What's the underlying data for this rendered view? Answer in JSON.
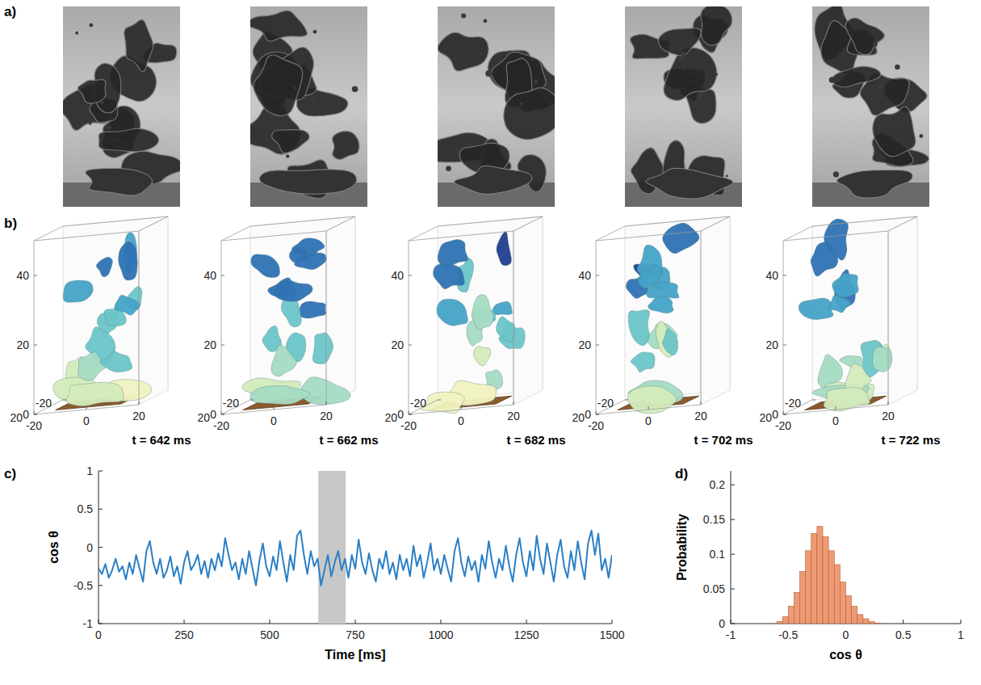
{
  "chart_data": [
    {
      "type": "image",
      "panel_label": "a)"
    },
    {
      "type": "surface3d",
      "panel_label": "b)",
      "titles": [
        "t = 642 ms",
        "t = 662 ms",
        "t = 682 ms",
        "t = 702 ms",
        "t = 722 ms"
      ],
      "xlim": [
        -20,
        20
      ],
      "ylim": [
        -20,
        20
      ],
      "zlim": [
        0,
        50
      ],
      "xticks": [
        -20,
        0,
        20
      ],
      "yticks": [
        -20,
        20
      ],
      "zticks": [
        0,
        20,
        40
      ]
    },
    {
      "type": "line",
      "panel_label": "c)",
      "xlabel": "Time [ms]",
      "ylabel": "cos θ",
      "color": "#2a7fc6",
      "x": [
        0,
        10,
        20,
        30,
        40,
        50,
        60,
        70,
        80,
        90,
        100,
        110,
        120,
        130,
        140,
        150,
        160,
        170,
        180,
        190,
        200,
        210,
        220,
        230,
        240,
        250,
        260,
        270,
        280,
        290,
        300,
        310,
        320,
        330,
        340,
        350,
        360,
        370,
        380,
        390,
        400,
        410,
        420,
        430,
        440,
        450,
        460,
        470,
        480,
        490,
        500,
        510,
        520,
        530,
        540,
        550,
        560,
        570,
        580,
        590,
        600,
        610,
        620,
        630,
        640,
        650,
        660,
        670,
        680,
        690,
        700,
        710,
        720,
        730,
        740,
        750,
        760,
        770,
        780,
        790,
        800,
        810,
        820,
        830,
        840,
        850,
        860,
        870,
        880,
        890,
        900,
        910,
        920,
        930,
        940,
        950,
        960,
        970,
        980,
        990,
        1000,
        1010,
        1020,
        1030,
        1040,
        1050,
        1060,
        1070,
        1080,
        1090,
        1100,
        1110,
        1120,
        1130,
        1140,
        1150,
        1160,
        1170,
        1180,
        1190,
        1200,
        1210,
        1220,
        1230,
        1240,
        1250,
        1260,
        1270,
        1280,
        1290,
        1300,
        1310,
        1320,
        1330,
        1340,
        1350,
        1360,
        1370,
        1380,
        1390,
        1400,
        1410,
        1420,
        1430,
        1440,
        1450,
        1460,
        1470,
        1480,
        1490,
        1500
      ],
      "values": [
        -0.28,
        -0.35,
        -0.22,
        -0.4,
        -0.3,
        -0.15,
        -0.32,
        -0.25,
        -0.42,
        -0.2,
        -0.35,
        -0.1,
        -0.28,
        -0.45,
        -0.05,
        0.08,
        -0.2,
        -0.35,
        -0.15,
        -0.4,
        -0.3,
        -0.12,
        -0.38,
        -0.25,
        -0.48,
        -0.2,
        -0.05,
        -0.3,
        -0.22,
        -0.1,
        -0.35,
        -0.18,
        -0.4,
        -0.15,
        -0.3,
        -0.08,
        -0.25,
        0.12,
        -0.1,
        -0.3,
        -0.2,
        -0.42,
        -0.15,
        -0.35,
        -0.05,
        -0.28,
        -0.5,
        -0.18,
        0.05,
        -0.25,
        -0.38,
        -0.12,
        -0.3,
        0.08,
        -0.2,
        -0.45,
        -0.1,
        -0.3,
        0.15,
        0.22,
        -0.1,
        -0.35,
        -0.05,
        -0.25,
        -0.15,
        -0.5,
        -0.3,
        -0.1,
        -0.38,
        -0.2,
        -0.05,
        -0.3,
        -0.15,
        -0.4,
        -0.1,
        -0.28,
        0.1,
        -0.2,
        -0.35,
        -0.08,
        -0.3,
        -0.45,
        -0.15,
        -0.28,
        -0.05,
        -0.35,
        -0.2,
        -0.42,
        -0.1,
        -0.3,
        -0.15,
        -0.38,
        0.02,
        -0.25,
        -0.1,
        -0.4,
        -0.2,
        0.05,
        -0.3,
        -0.15,
        -0.35,
        -0.1,
        -0.28,
        -0.45,
        -0.05,
        0.12,
        -0.2,
        -0.38,
        -0.12,
        -0.3,
        -0.18,
        -0.45,
        -0.1,
        -0.28,
        0.08,
        -0.2,
        -0.4,
        -0.15,
        -0.3,
        0.02,
        -0.25,
        -0.45,
        -0.1,
        0.12,
        -0.2,
        -0.38,
        -0.05,
        -0.3,
        0.15,
        -0.15,
        -0.35,
        0.05,
        -0.2,
        -0.45,
        -0.1,
        0.1,
        -0.25,
        -0.4,
        -0.05,
        -0.3,
        0.08,
        -0.2,
        -0.42,
        0.05,
        0.22,
        -0.1,
        0.18,
        -0.3,
        -0.15,
        -0.4,
        -0.1
      ],
      "xlim": [
        0,
        1500
      ],
      "ylim": [
        -1,
        1
      ],
      "xticks": [
        0,
        250,
        500,
        750,
        1000,
        1250,
        1500
      ],
      "yticks": [
        -1,
        -0.5,
        0,
        0.5,
        1
      ],
      "highlight": [
        642,
        722
      ]
    },
    {
      "type": "histogram",
      "panel_label": "d)",
      "xlabel": "cos θ",
      "ylabel": "Probability",
      "color": "#ee9b73",
      "bins": [
        -0.6,
        -0.55,
        -0.5,
        -0.45,
        -0.4,
        -0.35,
        -0.3,
        -0.25,
        -0.2,
        -0.15,
        -0.1,
        -0.05,
        0,
        0.05,
        0.1,
        0.15,
        0.2,
        0.25,
        0.3
      ],
      "values": [
        0.003,
        0.01,
        0.025,
        0.045,
        0.075,
        0.105,
        0.13,
        0.14,
        0.125,
        0.105,
        0.085,
        0.06,
        0.04,
        0.025,
        0.013,
        0.007,
        0.003,
        0.001
      ],
      "xlim": [
        -1,
        1
      ],
      "ylim": [
        0,
        0.22
      ],
      "xticks": [
        -1,
        -0.5,
        0,
        0.5,
        1
      ],
      "yticks": [
        0,
        0.05,
        0.1,
        0.15,
        0.2
      ]
    }
  ]
}
